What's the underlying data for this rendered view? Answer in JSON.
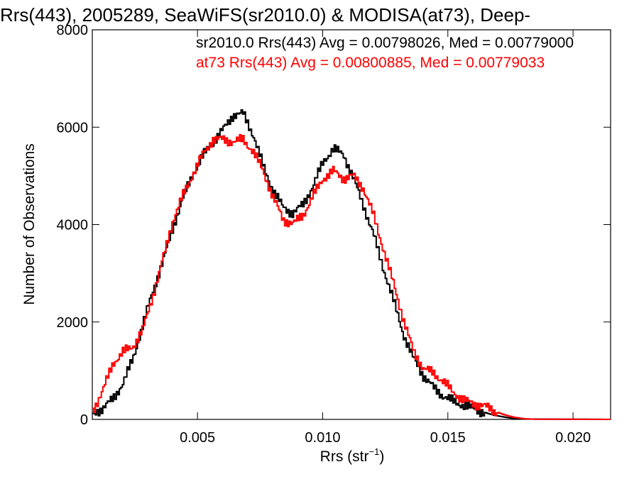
{
  "chart_data": {
    "type": "line",
    "title": "Rrs(443), 2005289, SeaWiFS(sr2010.0) & MODISA(at73), Deep-",
    "xlabel": "Rrs (str",
    "xlabel_exp": "−1",
    "xlabel_close": ")",
    "ylabel": "Number of Observations",
    "xlim": [
      0.0008,
      0.0215
    ],
    "ylim": [
      0,
      8000
    ],
    "xticks": [
      0.005,
      0.01,
      0.015,
      0.02
    ],
    "xtick_labels": [
      "0.005",
      "0.010",
      "0.015",
      "0.020"
    ],
    "yticks": [
      0,
      2000,
      4000,
      6000,
      8000
    ],
    "ytick_labels": [
      "0",
      "2000",
      "4000",
      "6000",
      "8000"
    ],
    "line_style": "step",
    "grid": false,
    "legend_position": "top",
    "series": [
      {
        "name": "sr2010.0 Rrs(443) Avg = 0.00798026, Med = 0.00779000",
        "color": "#000000",
        "points": [
          [
            0.0008,
            120
          ],
          [
            0.0012,
            230
          ],
          [
            0.0016,
            420
          ],
          [
            0.002,
            740
          ],
          [
            0.0024,
            1250
          ],
          [
            0.0028,
            1950
          ],
          [
            0.0032,
            2650
          ],
          [
            0.0036,
            3250
          ],
          [
            0.004,
            3950
          ],
          [
            0.0044,
            4550
          ],
          [
            0.0048,
            5050
          ],
          [
            0.0052,
            5420
          ],
          [
            0.0056,
            5700
          ],
          [
            0.006,
            5950
          ],
          [
            0.0064,
            6250
          ],
          [
            0.0068,
            6280
          ],
          [
            0.0072,
            5850
          ],
          [
            0.0076,
            5200
          ],
          [
            0.008,
            4700
          ],
          [
            0.0084,
            4350
          ],
          [
            0.0088,
            4230
          ],
          [
            0.0092,
            4420
          ],
          [
            0.0096,
            4800
          ],
          [
            0.01,
            5300
          ],
          [
            0.0104,
            5550
          ],
          [
            0.0108,
            5450
          ],
          [
            0.0112,
            4950
          ],
          [
            0.0116,
            4400
          ],
          [
            0.012,
            3800
          ],
          [
            0.0124,
            3100
          ],
          [
            0.0128,
            2450
          ],
          [
            0.0132,
            1750
          ],
          [
            0.0136,
            1250
          ],
          [
            0.014,
            900
          ],
          [
            0.0144,
            650
          ],
          [
            0.0148,
            480
          ],
          [
            0.0152,
            370
          ],
          [
            0.0156,
            290
          ],
          [
            0.016,
            220
          ],
          [
            0.0164,
            150
          ],
          [
            0.0168,
            90
          ],
          [
            0.0172,
            50
          ],
          [
            0.0176,
            20
          ],
          [
            0.018,
            8
          ],
          [
            0.0215,
            0
          ]
        ]
      },
      {
        "name": "at73 Rrs(443) Avg = 0.00800885, Med = 0.00779033",
        "color": "#ff0000",
        "points": [
          [
            0.0008,
            180
          ],
          [
            0.0012,
            600
          ],
          [
            0.0016,
            1150
          ],
          [
            0.002,
            1380
          ],
          [
            0.0024,
            1500
          ],
          [
            0.0028,
            1850
          ],
          [
            0.0032,
            2550
          ],
          [
            0.0036,
            3300
          ],
          [
            0.004,
            4100
          ],
          [
            0.0044,
            4600
          ],
          [
            0.0048,
            5050
          ],
          [
            0.0052,
            5450
          ],
          [
            0.0056,
            5750
          ],
          [
            0.006,
            5750
          ],
          [
            0.0064,
            5700
          ],
          [
            0.0068,
            5750
          ],
          [
            0.0072,
            5500
          ],
          [
            0.0076,
            5100
          ],
          [
            0.008,
            4550
          ],
          [
            0.0084,
            4100
          ],
          [
            0.0088,
            4020
          ],
          [
            0.0092,
            4200
          ],
          [
            0.0096,
            4600
          ],
          [
            0.01,
            4950
          ],
          [
            0.0104,
            5100
          ],
          [
            0.0108,
            4950
          ],
          [
            0.0112,
            5000
          ],
          [
            0.0116,
            4750
          ],
          [
            0.012,
            4200
          ],
          [
            0.0124,
            3500
          ],
          [
            0.0128,
            2800
          ],
          [
            0.0132,
            2050
          ],
          [
            0.0136,
            1400
          ],
          [
            0.014,
            1050
          ],
          [
            0.0144,
            950
          ],
          [
            0.0148,
            780
          ],
          [
            0.0152,
            550
          ],
          [
            0.0156,
            400
          ],
          [
            0.016,
            320
          ],
          [
            0.0164,
            280
          ],
          [
            0.0168,
            180
          ],
          [
            0.0172,
            100
          ],
          [
            0.0176,
            45
          ],
          [
            0.018,
            15
          ],
          [
            0.0184,
            5
          ],
          [
            0.0215,
            0
          ]
        ]
      }
    ]
  }
}
